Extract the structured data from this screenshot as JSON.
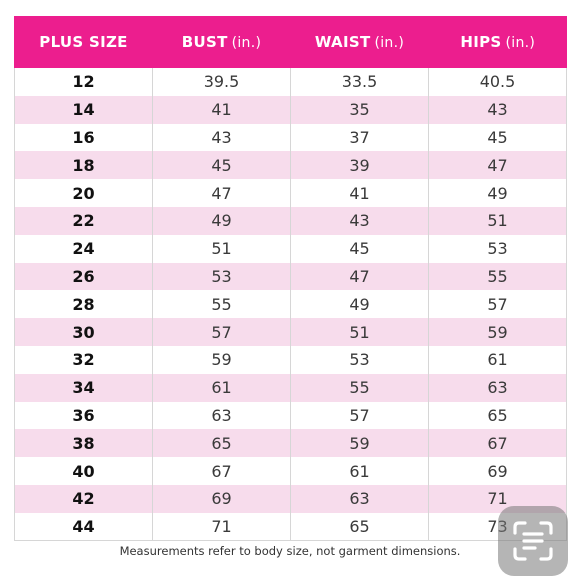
{
  "table": {
    "headers": [
      {
        "label": "PLUS SIZE",
        "unit": ""
      },
      {
        "label": "BUST",
        "unit": "(in.)"
      },
      {
        "label": "WAIST",
        "unit": "(in.)"
      },
      {
        "label": "HIPS",
        "unit": "(in.)"
      }
    ],
    "rows": [
      {
        "size": "12",
        "bust": "39.5",
        "waist": "33.5",
        "hips": "40.5"
      },
      {
        "size": "14",
        "bust": "41",
        "waist": "35",
        "hips": "43"
      },
      {
        "size": "16",
        "bust": "43",
        "waist": "37",
        "hips": "45"
      },
      {
        "size": "18",
        "bust": "45",
        "waist": "39",
        "hips": "47"
      },
      {
        "size": "20",
        "bust": "47",
        "waist": "41",
        "hips": "49"
      },
      {
        "size": "22",
        "bust": "49",
        "waist": "43",
        "hips": "51"
      },
      {
        "size": "24",
        "bust": "51",
        "waist": "45",
        "hips": "53"
      },
      {
        "size": "26",
        "bust": "53",
        "waist": "47",
        "hips": "55"
      },
      {
        "size": "28",
        "bust": "55",
        "waist": "49",
        "hips": "57"
      },
      {
        "size": "30",
        "bust": "57",
        "waist": "51",
        "hips": "59"
      },
      {
        "size": "32",
        "bust": "59",
        "waist": "53",
        "hips": "61"
      },
      {
        "size": "34",
        "bust": "61",
        "waist": "55",
        "hips": "63"
      },
      {
        "size": "36",
        "bust": "63",
        "waist": "57",
        "hips": "65"
      },
      {
        "size": "38",
        "bust": "65",
        "waist": "59",
        "hips": "67"
      },
      {
        "size": "40",
        "bust": "67",
        "waist": "61",
        "hips": "69"
      },
      {
        "size": "42",
        "bust": "69",
        "waist": "63",
        "hips": "71"
      },
      {
        "size": "44",
        "bust": "71",
        "waist": "65",
        "hips": "73"
      }
    ]
  },
  "footnote": "Measurements refer to body size, not garment dimensions.",
  "overlay": {
    "icon": "scan-text-icon"
  },
  "colors": {
    "header_bg": "#ec1e8e",
    "stripe": "#f7dcec",
    "header_text": "#ffffff"
  }
}
